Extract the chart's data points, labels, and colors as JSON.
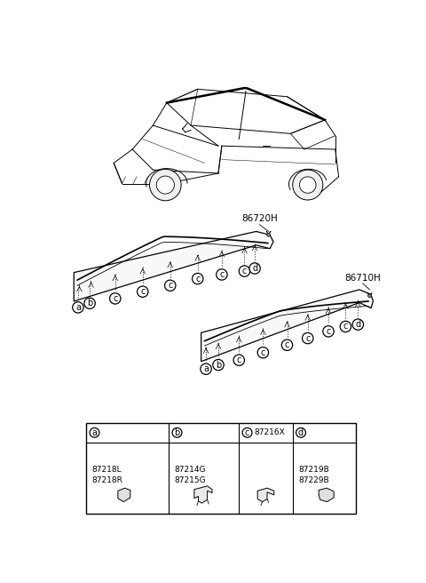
{
  "bg_color": "#ffffff",
  "part_label_86720H": "86720H",
  "part_label_86710H": "86710H",
  "table_cols": [
    {
      "letter": "a",
      "code": null,
      "parts": [
        "87218L",
        "87218R"
      ]
    },
    {
      "letter": "b",
      "code": null,
      "parts": [
        "87214G",
        "87215G"
      ]
    },
    {
      "letter": "c",
      "code": "87216X",
      "parts": []
    },
    {
      "letter": "d",
      "code": null,
      "parts": [
        "87219B",
        "87229B"
      ]
    }
  ]
}
